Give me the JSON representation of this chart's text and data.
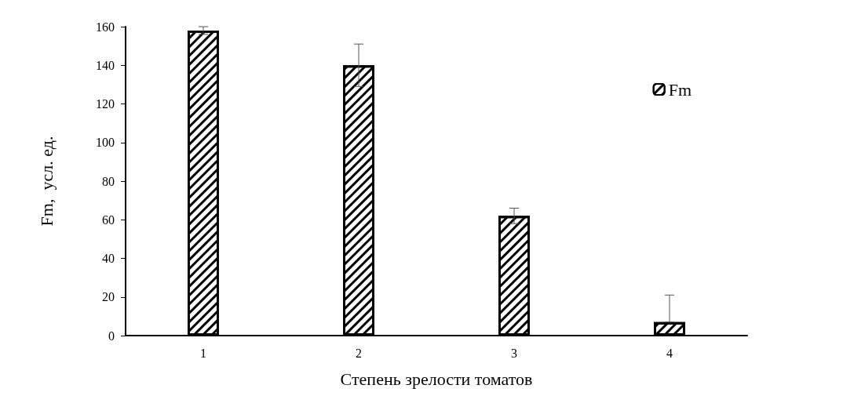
{
  "chart_data": {
    "type": "bar",
    "xlabel": "Степень зрелости томатов",
    "ylabel": "Fm,  усл. ед.",
    "categories": [
      "1",
      "2",
      "3",
      "4"
    ],
    "series": [
      {
        "name": "Fm",
        "color": "#000000",
        "values": [
          158,
          140,
          62,
          7
        ],
        "errors": [
          2,
          11,
          4,
          [
            7,
            21
          ]
        ]
      }
    ],
    "ylim": [
      0,
      160
    ],
    "yticks": [
      0,
      20,
      40,
      60,
      80,
      100,
      120,
      140,
      160
    ],
    "grid": false,
    "legend": "top right"
  }
}
